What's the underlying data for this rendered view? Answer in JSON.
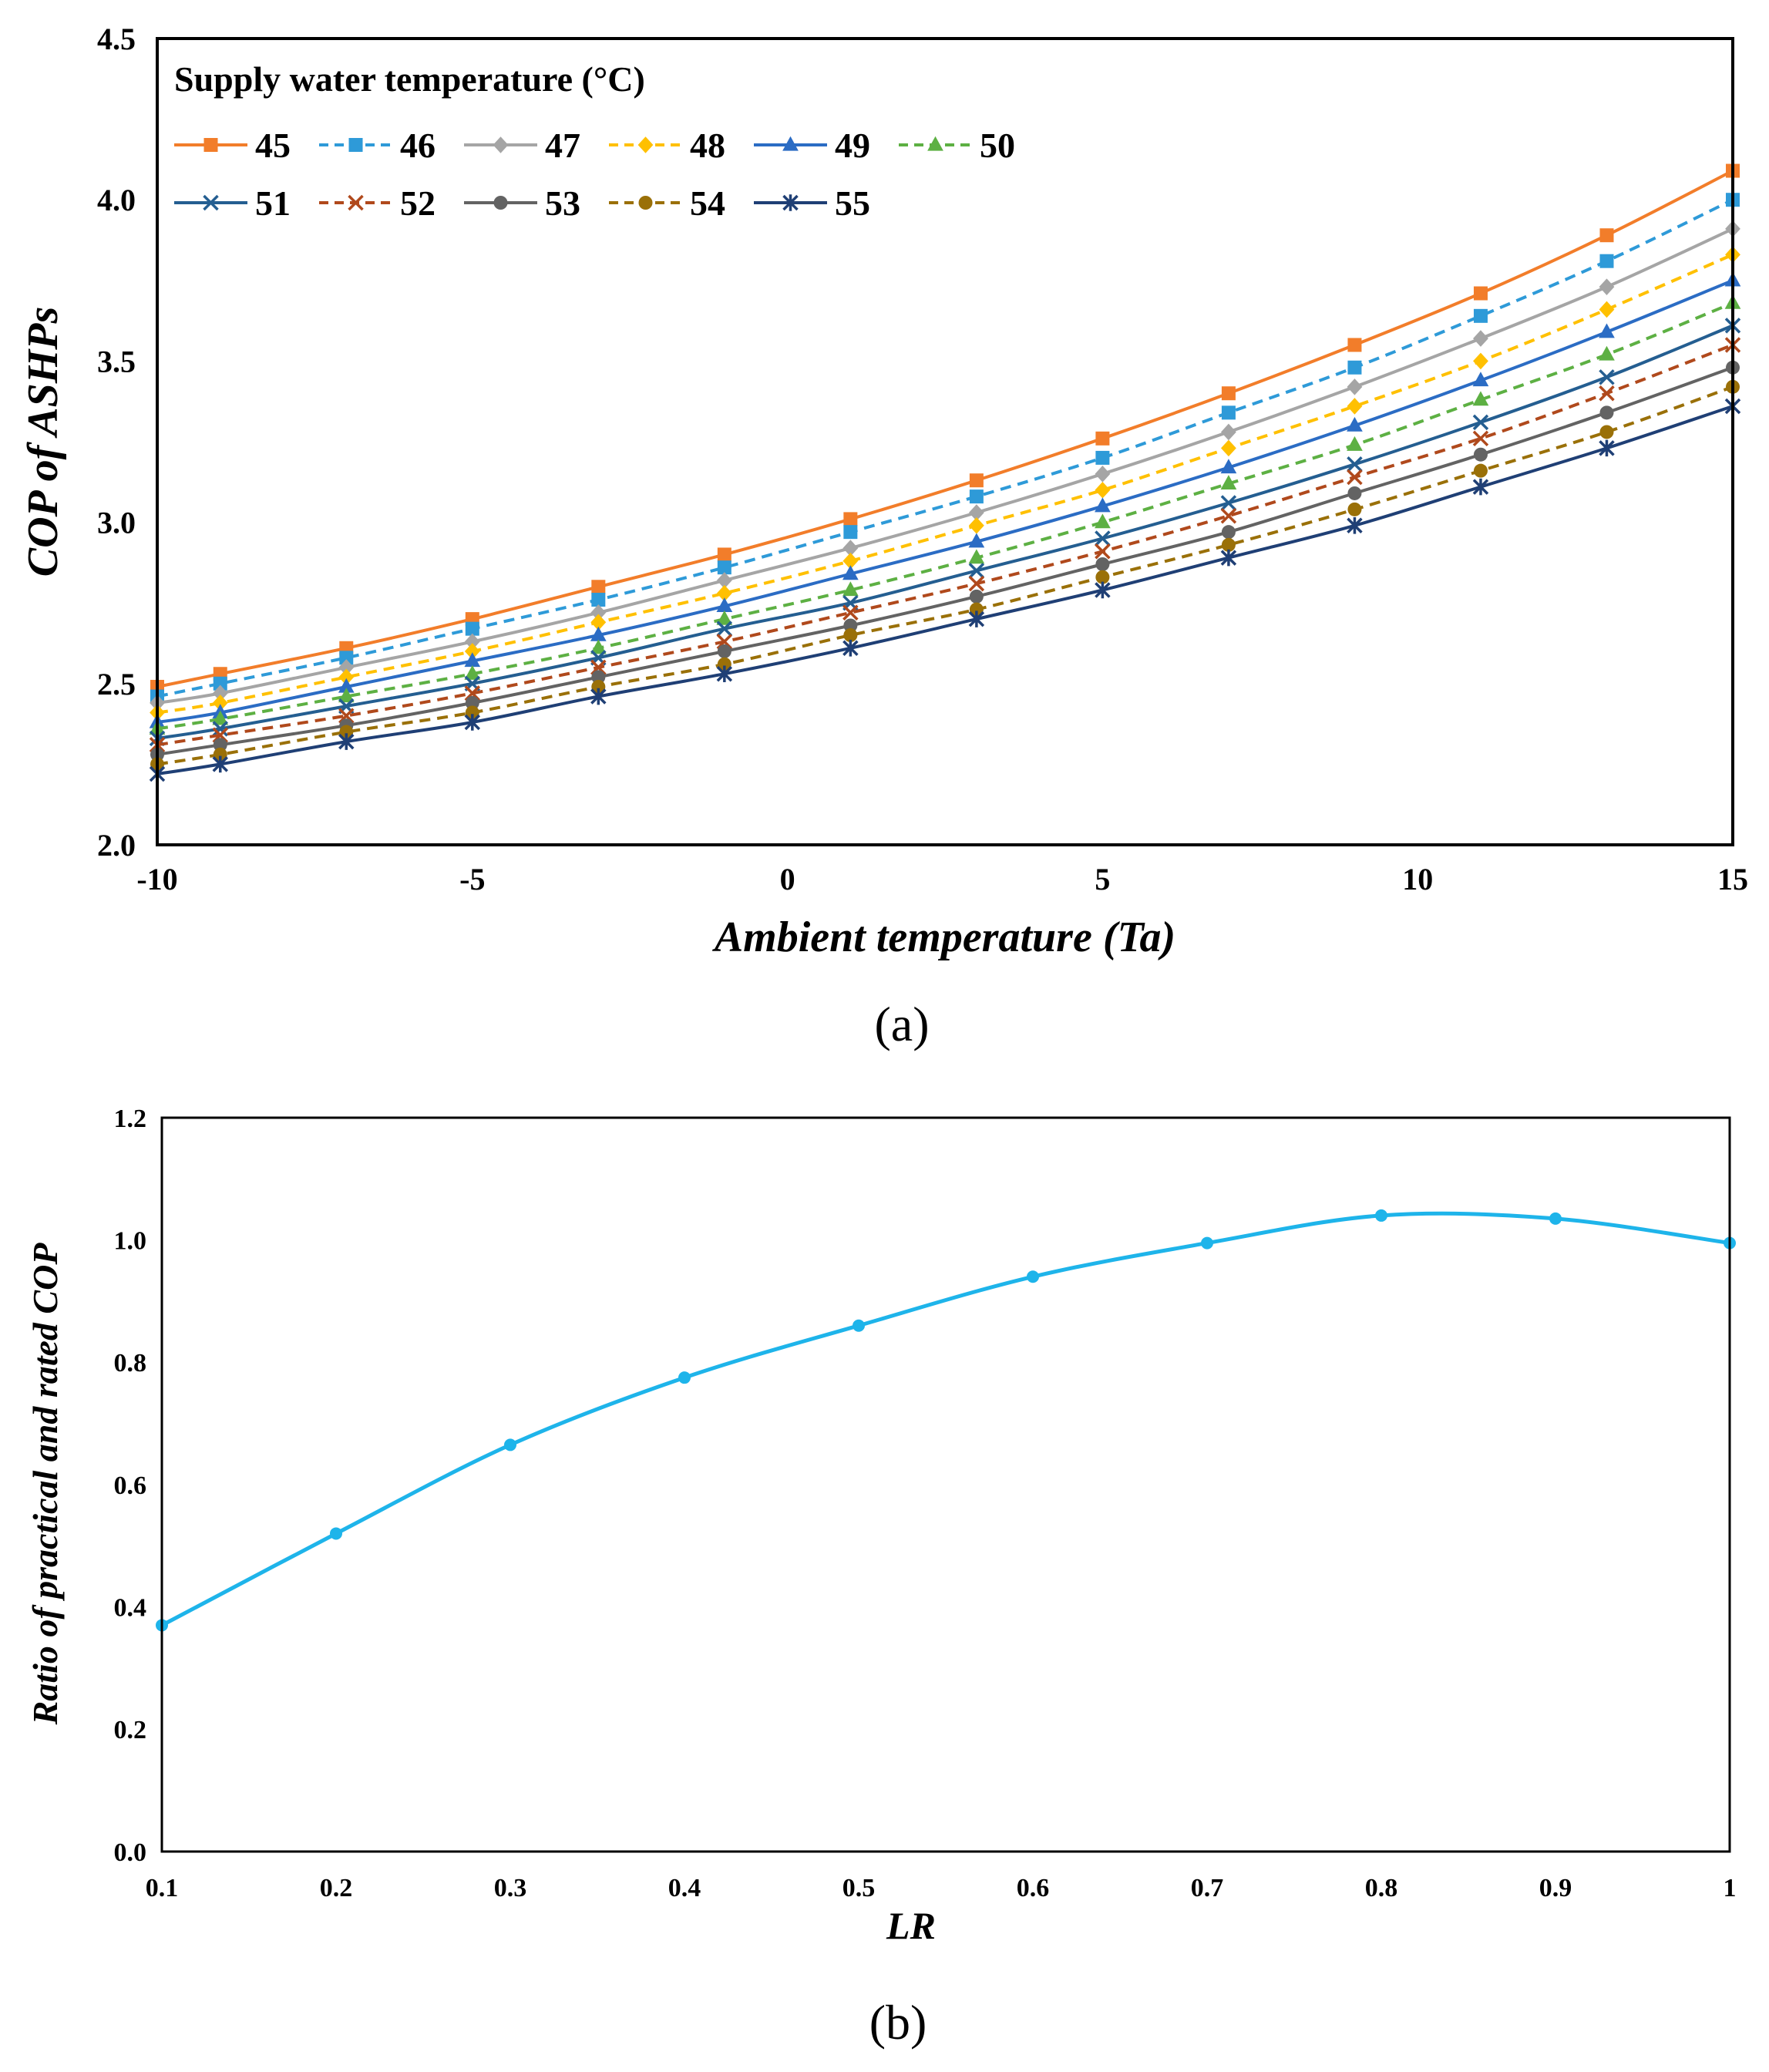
{
  "chart_data": [
    {
      "type": "line",
      "panel_label": "(a)",
      "legend_title": "Supply water temperature (°C)",
      "xlabel": "Ambient temperature (Ta)",
      "ylabel": "COP of ASHPs",
      "xlim": [
        -10,
        15
      ],
      "ylim": [
        2.0,
        4.5
      ],
      "xticks": [
        -10,
        -5,
        0,
        5,
        10,
        15
      ],
      "xtick_labels": [
        "-10",
        "-5",
        "0",
        "5",
        "10",
        "15"
      ],
      "yticks": [
        2.0,
        2.5,
        3.0,
        3.5,
        4.0,
        4.5
      ],
      "ytick_labels": [
        "2.0",
        "2.5",
        "3.0",
        "3.5",
        "4.0",
        "4.5"
      ],
      "grid": false,
      "legend_position": "top-left",
      "x": [
        -10,
        -9,
        -7,
        -5,
        -3,
        -1,
        1,
        3,
        5,
        7,
        9,
        11,
        13,
        15
      ],
      "series": [
        {
          "name": "45",
          "color": "#F27D2A",
          "dash": "solid",
          "marker": "square",
          "values": [
            2.49,
            2.53,
            2.61,
            2.7,
            2.8,
            2.9,
            3.01,
            3.13,
            3.26,
            3.4,
            3.55,
            3.71,
            3.89,
            4.09
          ]
        },
        {
          "name": "46",
          "color": "#2E9AD8",
          "dash": "dashed",
          "marker": "square",
          "values": [
            2.46,
            2.5,
            2.58,
            2.67,
            2.76,
            2.86,
            2.97,
            3.08,
            3.2,
            3.34,
            3.48,
            3.64,
            3.81,
            4.0
          ]
        },
        {
          "name": "47",
          "color": "#A5A5A5",
          "dash": "solid",
          "marker": "diamond",
          "values": [
            2.44,
            2.47,
            2.55,
            2.63,
            2.72,
            2.82,
            2.92,
            3.03,
            3.15,
            3.28,
            3.42,
            3.57,
            3.73,
            3.91
          ]
        },
        {
          "name": "48",
          "color": "#FFC000",
          "dash": "dashed",
          "marker": "diamond",
          "values": [
            2.41,
            2.44,
            2.52,
            2.6,
            2.69,
            2.78,
            2.88,
            2.99,
            3.1,
            3.23,
            3.36,
            3.5,
            3.66,
            3.83
          ]
        },
        {
          "name": "49",
          "color": "#2B6CC4",
          "dash": "solid",
          "marker": "triangle",
          "values": [
            2.38,
            2.41,
            2.49,
            2.57,
            2.65,
            2.74,
            2.84,
            2.94,
            3.05,
            3.17,
            3.3,
            3.44,
            3.59,
            3.75
          ]
        },
        {
          "name": "50",
          "color": "#5DB043",
          "dash": "dashed",
          "marker": "triangle",
          "values": [
            2.36,
            2.39,
            2.46,
            2.53,
            2.61,
            2.7,
            2.79,
            2.89,
            3.0,
            3.12,
            3.24,
            3.38,
            3.52,
            3.68
          ]
        },
        {
          "name": "51",
          "color": "#245E91",
          "dash": "solid",
          "marker": "x",
          "values": [
            2.33,
            2.36,
            2.43,
            2.5,
            2.58,
            2.67,
            2.75,
            2.85,
            2.95,
            3.06,
            3.18,
            3.31,
            3.45,
            3.61
          ]
        },
        {
          "name": "52",
          "color": "#B0491C",
          "dash": "dashed",
          "marker": "x",
          "values": [
            2.31,
            2.34,
            2.4,
            2.47,
            2.55,
            2.63,
            2.72,
            2.81,
            2.91,
            3.02,
            3.14,
            3.26,
            3.4,
            3.55
          ]
        },
        {
          "name": "53",
          "color": "#636363",
          "dash": "solid",
          "marker": "circle",
          "values": [
            2.28,
            2.31,
            2.37,
            2.44,
            2.52,
            2.6,
            2.68,
            2.77,
            2.87,
            2.97,
            3.09,
            3.21,
            3.34,
            3.48
          ]
        },
        {
          "name": "54",
          "color": "#9A7008",
          "dash": "dashed",
          "marker": "circle",
          "values": [
            2.25,
            2.28,
            2.35,
            2.41,
            2.49,
            2.56,
            2.65,
            2.73,
            2.83,
            2.93,
            3.04,
            3.16,
            3.28,
            3.42
          ]
        },
        {
          "name": "55",
          "color": "#1F3F75",
          "dash": "solid",
          "marker": "star",
          "values": [
            2.22,
            2.25,
            2.32,
            2.38,
            2.46,
            2.53,
            2.61,
            2.7,
            2.79,
            2.89,
            2.99,
            3.11,
            3.23,
            3.36
          ]
        }
      ]
    },
    {
      "type": "line",
      "panel_label": "(b)",
      "xlabel": "LR",
      "ylabel": "Ratio of practical and rated COP",
      "xlim": [
        0.1,
        1.0
      ],
      "ylim": [
        0.0,
        1.2
      ],
      "xticks": [
        0.1,
        0.2,
        0.3,
        0.4,
        0.5,
        0.6,
        0.7,
        0.8,
        0.9,
        1.0
      ],
      "xtick_labels": [
        "0.1",
        "0.2",
        "0.3",
        "0.4",
        "0.5",
        "0.6",
        "0.7",
        "0.8",
        "0.9",
        "1"
      ],
      "yticks": [
        0.0,
        0.2,
        0.4,
        0.6,
        0.8,
        1.0,
        1.2
      ],
      "ytick_labels": [
        "0.0",
        "0.2",
        "0.4",
        "0.6",
        "0.8",
        "1.0",
        "1.2"
      ],
      "grid": false,
      "x": [
        0.1,
        0.2,
        0.3,
        0.4,
        0.5,
        0.6,
        0.7,
        0.8,
        0.9,
        1.0
      ],
      "series": [
        {
          "name": "Ratio",
          "color": "#1EB4EA",
          "dash": "solid",
          "marker": "circle",
          "values": [
            0.37,
            0.52,
            0.665,
            0.775,
            0.86,
            0.94,
            0.995,
            1.04,
            1.035,
            0.995
          ]
        }
      ]
    }
  ]
}
